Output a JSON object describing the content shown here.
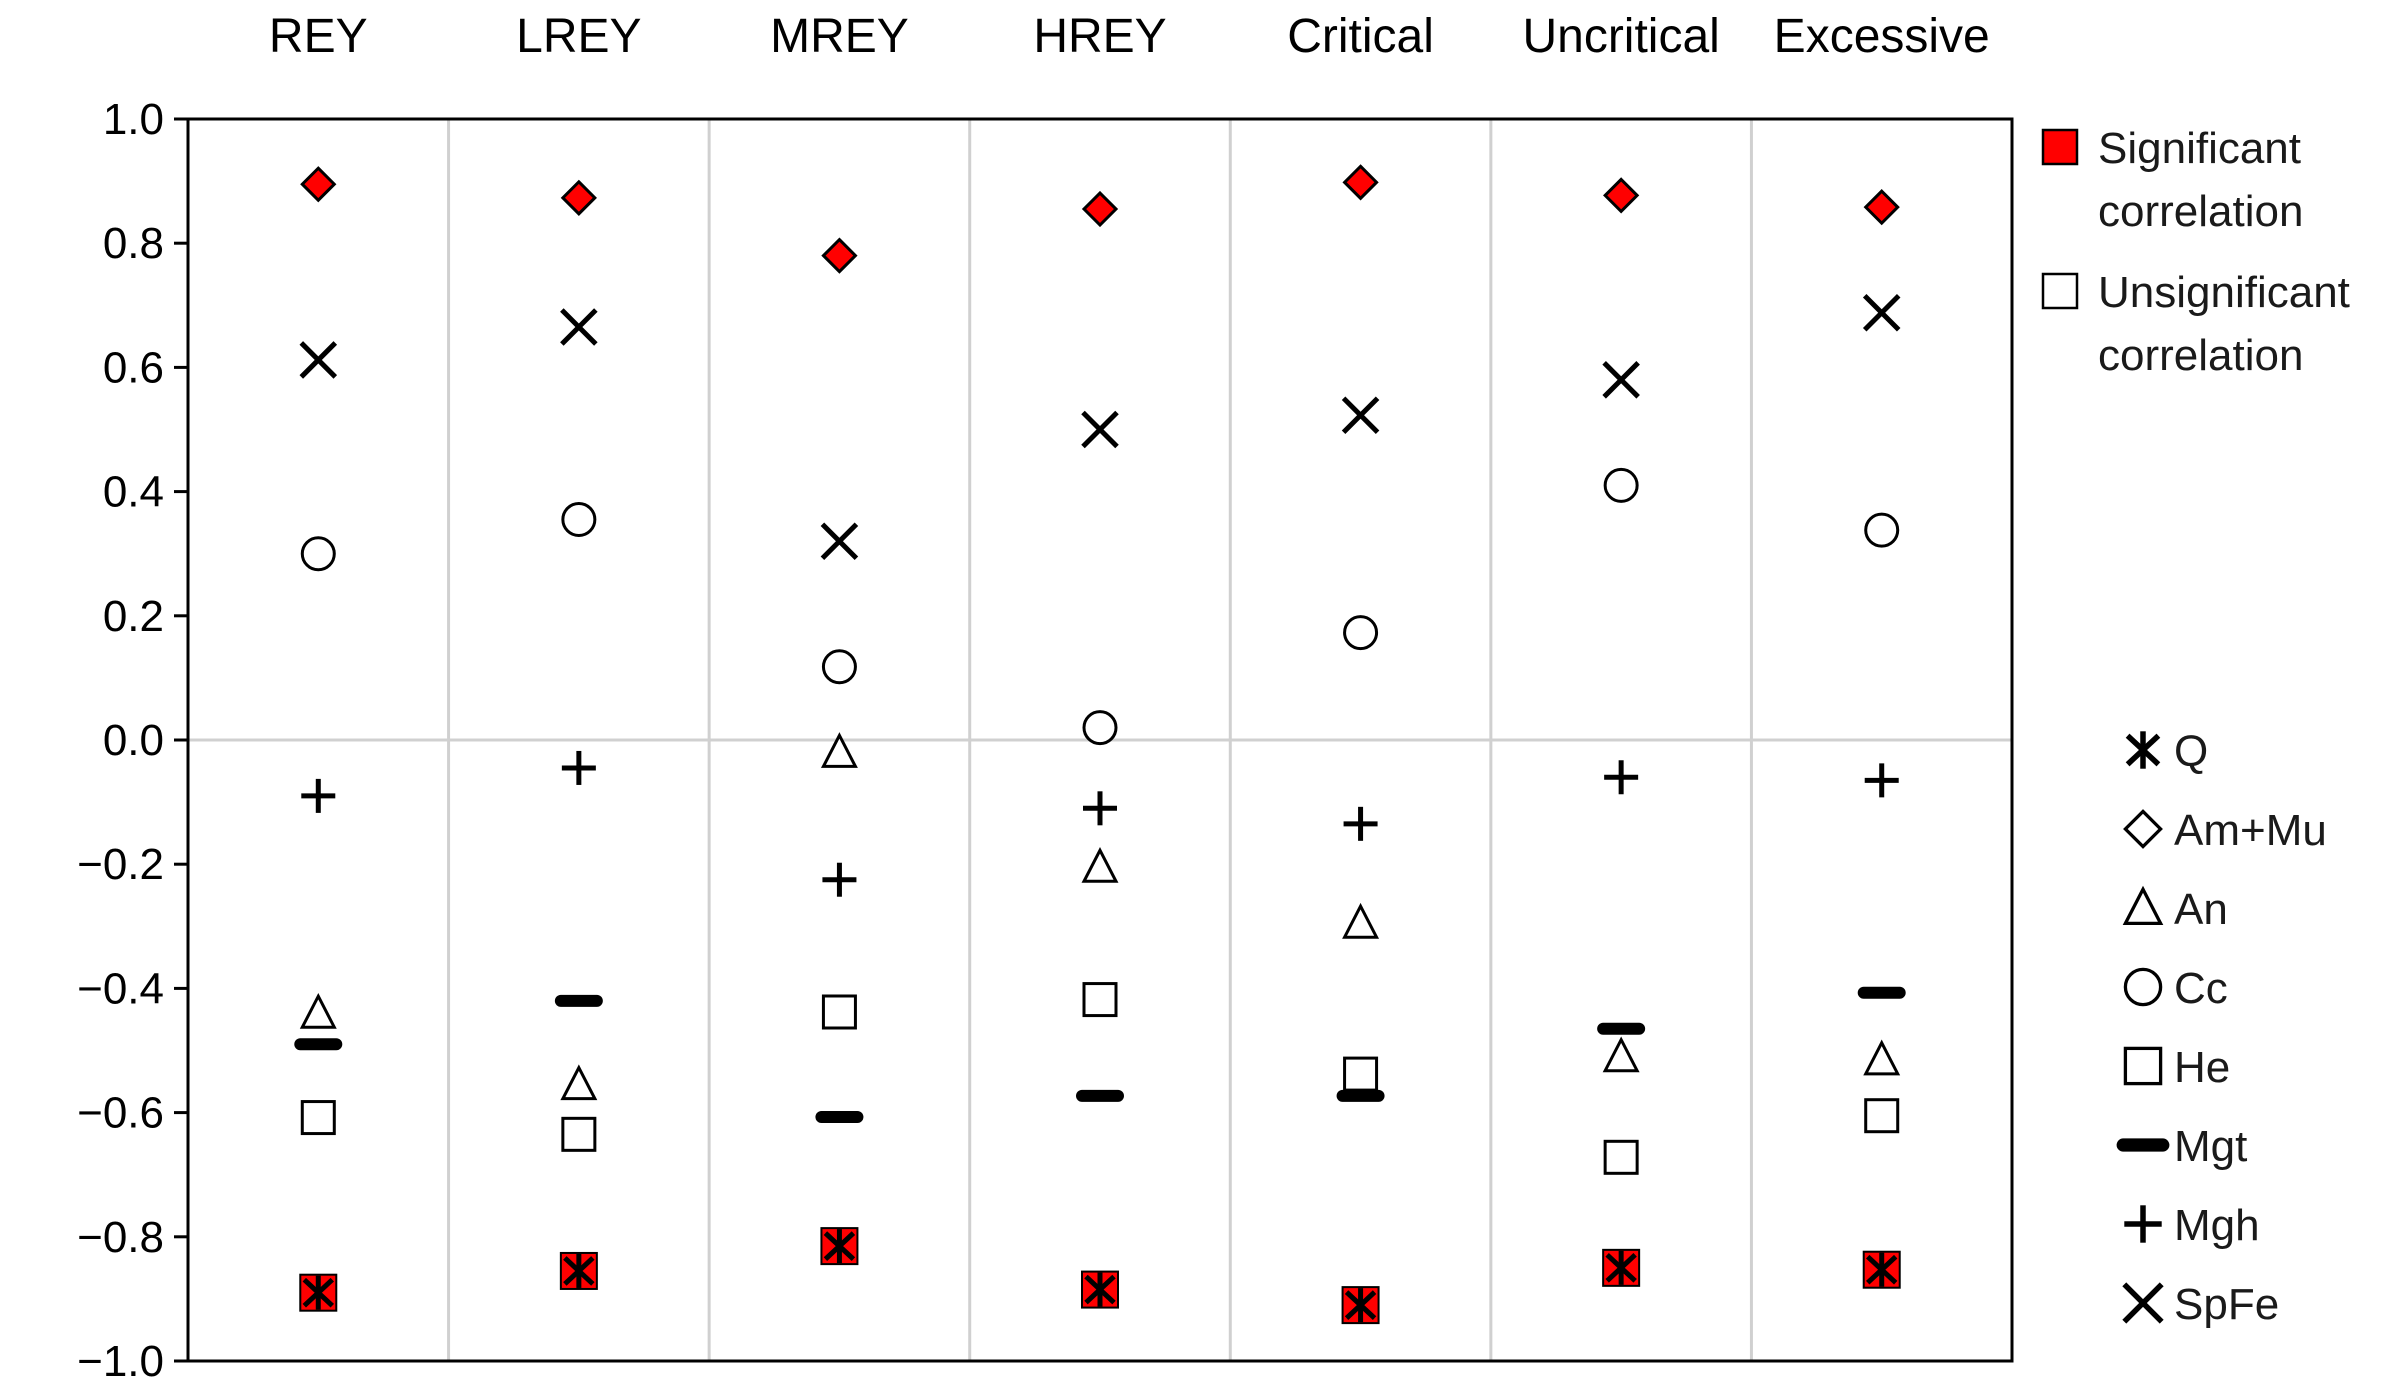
{
  "chart_data": {
    "type": "scatter",
    "categories": [
      "REY",
      "LREY",
      "MREY",
      "HREY",
      "Critical",
      "Uncritical",
      "Excessive"
    ],
    "ylim": [
      -1.0,
      1.0
    ],
    "yticks": [
      "1.0",
      "0.8",
      "0.6",
      "0.4",
      "0.2",
      "0.0",
      "-0.2",
      "-0.4",
      "-0.6",
      "-0.8",
      "-1.0"
    ],
    "grid": "vertical",
    "legend_position": "right",
    "significance_legend": [
      {
        "lines": [
          "Significant",
          "correlation"
        ],
        "fill": "#ff0000"
      },
      {
        "lines": [
          "Unsignificant",
          "correlation"
        ],
        "fill": "#ffffff"
      }
    ],
    "series": [
      {
        "name": "Q",
        "marker": "asterisk",
        "values": [
          -0.89,
          -0.855,
          -0.815,
          -0.885,
          -0.91,
          -0.85,
          -0.853
        ],
        "significant": [
          true,
          true,
          true,
          true,
          true,
          true,
          true
        ]
      },
      {
        "name": "Am+Mu",
        "marker": "diamond",
        "values": [
          0.895,
          0.873,
          0.78,
          0.855,
          0.898,
          0.877,
          0.858
        ],
        "significant": [
          true,
          true,
          true,
          true,
          true,
          true,
          true
        ]
      },
      {
        "name": "An",
        "marker": "triangle",
        "values": [
          -0.44,
          -0.555,
          -0.02,
          -0.205,
          -0.295,
          -0.51,
          -0.515
        ],
        "significant": [
          false,
          false,
          false,
          false,
          false,
          false,
          false
        ]
      },
      {
        "name": "Cc",
        "marker": "circle",
        "values": [
          0.3,
          0.355,
          0.118,
          0.02,
          0.173,
          0.41,
          0.338
        ],
        "significant": [
          false,
          false,
          false,
          false,
          false,
          false,
          false
        ]
      },
      {
        "name": "He",
        "marker": "square",
        "values": [
          -0.608,
          -0.635,
          -0.438,
          -0.418,
          -0.538,
          -0.672,
          -0.605
        ],
        "significant": [
          false,
          false,
          false,
          false,
          false,
          false,
          false
        ]
      },
      {
        "name": "Mgt",
        "marker": "dash",
        "values": [
          -0.49,
          -0.42,
          -0.607,
          -0.573,
          -0.573,
          -0.465,
          -0.407
        ],
        "significant": [
          false,
          false,
          false,
          false,
          false,
          false,
          false
        ]
      },
      {
        "name": "Mgh",
        "marker": "plus",
        "values": [
          -0.09,
          -0.045,
          -0.225,
          -0.11,
          -0.135,
          -0.06,
          -0.065
        ],
        "significant": [
          false,
          false,
          false,
          false,
          false,
          false,
          false
        ]
      },
      {
        "name": "SpFe",
        "marker": "x",
        "values": [
          0.612,
          0.665,
          0.32,
          0.5,
          0.523,
          0.58,
          0.688
        ],
        "significant": [
          false,
          false,
          false,
          false,
          false,
          false,
          false
        ]
      }
    ]
  }
}
